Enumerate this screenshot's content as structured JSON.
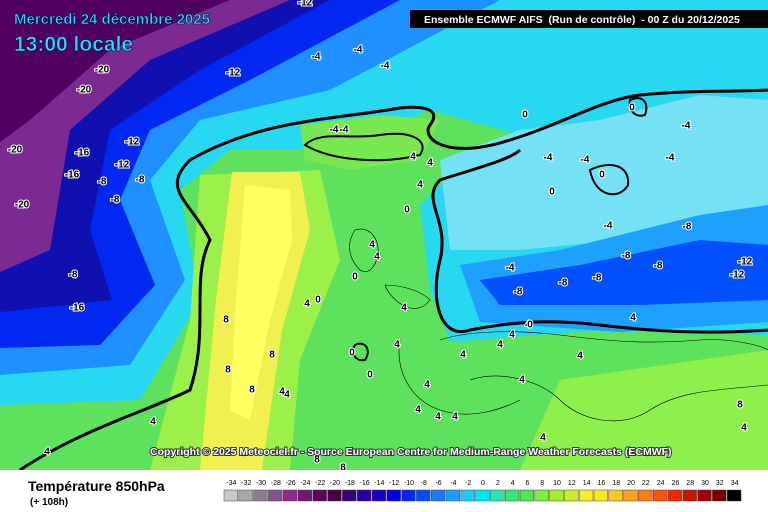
{
  "header": {
    "date": "Mercredi 24 décembre 2025",
    "time": "13:00 locale",
    "run": "Ensemble ECMWF AIFS  (Run de contrôle)  - 00 Z du 20/12/2025"
  },
  "copyright": "Copyright © 2025 Meteociel.fr - Source European Centre for Medium-Range Weather Forecasts (ECMWF)",
  "footer": {
    "title": "Température 850hPa",
    "lead": "(+ 108h)"
  },
  "legend": {
    "values": [
      -34,
      -32,
      -30,
      -28,
      -26,
      -24,
      -22,
      -20,
      -18,
      -16,
      -14,
      -12,
      -10,
      -8,
      -6,
      -4,
      -2,
      0,
      2,
      4,
      6,
      8,
      10,
      12,
      14,
      16,
      18,
      20,
      22,
      24,
      26,
      28,
      30,
      32,
      34
    ],
    "colors": [
      "#c8c8c8",
      "#a8a8a8",
      "#8c7c8c",
      "#8a508a",
      "#902890",
      "#781478",
      "#600060",
      "#480048",
      "#3c0078",
      "#2800a0",
      "#1400c8",
      "#0000e6",
      "#0028f0",
      "#0050ff",
      "#1e78ff",
      "#1ea0ff",
      "#20c8ff",
      "#00e6f0",
      "#28e6b4",
      "#3ce678",
      "#50e650",
      "#78f03c",
      "#a0f028",
      "#c8f028",
      "#f0f032",
      "#ffe628",
      "#ffc81e",
      "#ffa01e",
      "#ff7814",
      "#ff500a",
      "#f02800",
      "#c81400",
      "#a00000",
      "#780000",
      "#000000"
    ]
  },
  "contour_labels": [
    -12,
    -12,
    -4,
    -4,
    -4,
    -20,
    -20,
    -20,
    -20,
    -16,
    -16,
    -12,
    -12,
    -8,
    -8,
    -8,
    -8,
    -16,
    4,
    0,
    0,
    -4,
    -4,
    -4,
    -4,
    0,
    0,
    -4,
    -8,
    -8,
    -8,
    -12,
    -12,
    -8,
    -4,
    -8,
    -8,
    4,
    4,
    4,
    0,
    4,
    4,
    0,
    0,
    4,
    4,
    0,
    0,
    8,
    8,
    8,
    4,
    4,
    4,
    4,
    4,
    4,
    4,
    8,
    4,
    4,
    4,
    4,
    4,
    4,
    8,
    8,
    4,
    8,
    4,
    4,
    4,
    0,
    -4,
    -4
  ]
}
